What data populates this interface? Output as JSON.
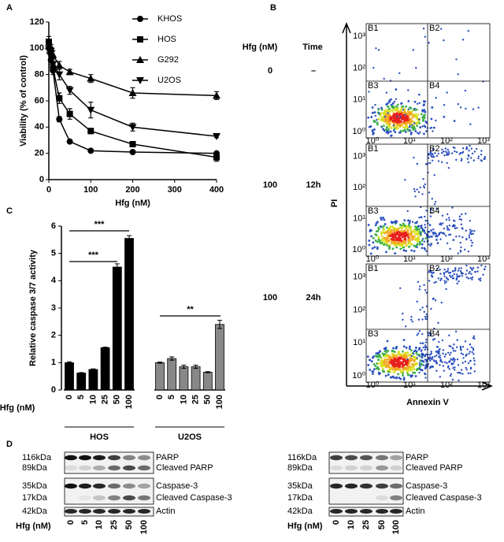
{
  "panel_labels": [
    "A",
    "B",
    "C",
    "D"
  ],
  "chart_data": [
    {
      "type": "line",
      "xlabel": "Hfg (nM)",
      "ylabel": "Viability (% of control)",
      "x": [
        0,
        5,
        10,
        25,
        50,
        100,
        200,
        400
      ],
      "xlim": [
        0,
        400
      ],
      "xticks": [
        0,
        100,
        200,
        300,
        400
      ],
      "ylim": [
        0,
        120
      ],
      "yticks": [
        0,
        20,
        40,
        60,
        80,
        100,
        120
      ],
      "series": [
        {
          "name": "KHOS",
          "marker": "circle",
          "color": "#000000",
          "values": [
            100,
            91,
            83,
            46,
            29,
            22,
            21,
            20
          ],
          "errors": [
            4,
            3,
            3,
            2,
            1,
            1,
            1,
            1
          ]
        },
        {
          "name": "HOS",
          "marker": "square",
          "color": "#000000",
          "values": [
            105,
            97,
            85,
            62,
            50,
            37,
            27,
            17
          ],
          "errors": [
            4,
            4,
            3,
            4,
            4,
            2,
            2,
            3
          ]
        },
        {
          "name": "G292",
          "marker": "triangle-up",
          "color": "#000000",
          "values": [
            102,
            100,
            95,
            87,
            82,
            77,
            66,
            64
          ],
          "errors": [
            3,
            3,
            3,
            3,
            2,
            3,
            4,
            3
          ]
        },
        {
          "name": "U2OS",
          "marker": "triangle-down",
          "color": "#000000",
          "values": [
            100,
            98,
            88,
            80,
            68,
            53,
            40,
            33
          ],
          "errors": [
            3,
            3,
            4,
            4,
            3,
            6,
            3,
            1
          ]
        }
      ]
    },
    {
      "type": "bar",
      "xlabel": "Hfg (nM)",
      "ylabel": "Relative caspase 3/7 activity",
      "categories": [
        "0",
        "5",
        "10",
        "25",
        "50",
        "100"
      ],
      "ylim": [
        0,
        6
      ],
      "yticks": [
        0,
        1,
        2,
        3,
        4,
        5,
        6
      ],
      "series": [
        {
          "name": "HOS",
          "color": "#000000",
          "values": [
            1,
            0.62,
            0.75,
            1.55,
            4.5,
            5.55
          ],
          "errors": [
            0.03,
            0.02,
            0.02,
            0.02,
            0.12,
            0.1
          ]
        },
        {
          "name": "U2OS",
          "color": "#888888",
          "values": [
            1,
            1.15,
            0.85,
            0.85,
            0.65,
            2.4
          ],
          "errors": [
            0.02,
            0.06,
            0.06,
            0.06,
            0.02,
            0.15
          ]
        }
      ],
      "annotations": [
        "***",
        "***",
        "**"
      ]
    }
  ],
  "flow": {
    "header": [
      "Hfg (nM)",
      "Time"
    ],
    "rows": [
      [
        "0",
        "–"
      ],
      [
        "100",
        "12h"
      ],
      [
        "100",
        "24h"
      ]
    ],
    "quadrants": [
      "B1",
      "B2",
      "B3",
      "B4"
    ],
    "axis_ticks": [
      "10⁰",
      "10¹",
      "10²",
      "10³"
    ],
    "xlabel": "Annexin V",
    "ylabel": "PI"
  },
  "blots": [
    {
      "kda": [
        "116kDa",
        "89kDa",
        "35kDa",
        "17kDa",
        "42kDa"
      ],
      "proteins": [
        "PARP",
        "Cleaved PARP",
        "Caspase-3",
        "Cleaved Caspase-3",
        "Actin"
      ],
      "lane_title": "Hfg (nM)",
      "lanes": [
        "0",
        "5",
        "10",
        "25",
        "50",
        "100"
      ]
    },
    {
      "kda": [
        "116kDa",
        "89kDa",
        "35kDa",
        "17kDa",
        "42kDa"
      ],
      "proteins": [
        "PARP",
        "Cleaved PARP",
        "Caspase-3",
        "Cleaved Caspase-3",
        "Actin"
      ],
      "lane_title": "Hfg (nM)",
      "lanes": [
        "0",
        "10",
        "25",
        "50",
        "100"
      ]
    }
  ]
}
